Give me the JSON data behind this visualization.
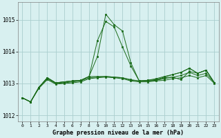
{
  "title": "Graphe pression niveau de la mer (hPa)",
  "background_color": "#d8f0f0",
  "grid_color": "#aacece",
  "line_color": "#1a6b1a",
  "marker_color": "#1a6b1a",
  "xlim": [
    -0.5,
    23.5
  ],
  "ylim": [
    1011.8,
    1015.55
  ],
  "yticks": [
    1012,
    1013,
    1014,
    1015
  ],
  "xticks": [
    0,
    1,
    2,
    3,
    4,
    5,
    6,
    7,
    8,
    9,
    10,
    11,
    12,
    13,
    14,
    15,
    16,
    17,
    18,
    19,
    20,
    21,
    22,
    23
  ],
  "series": [
    {
      "x": [
        0,
        1,
        2,
        3,
        4,
        5,
        6,
        7,
        8,
        9,
        10,
        11,
        12,
        13,
        14,
        15,
        16,
        17,
        18,
        19,
        20,
        21,
        22,
        23
      ],
      "y": [
        1012.55,
        1012.42,
        1012.88,
        1013.18,
        1013.02,
        1013.05,
        1013.08,
        1013.1,
        1013.22,
        1013.85,
        1015.18,
        1014.85,
        1014.65,
        1013.65,
        1013.08,
        1013.08,
        1013.1,
        1013.18,
        1013.2,
        1013.12,
        1013.38,
        1013.32,
        1013.42,
        1013.02
      ]
    },
    {
      "x": [
        0,
        1,
        2,
        3,
        4,
        5,
        6,
        7,
        8,
        9,
        10,
        11,
        12,
        13,
        14,
        15,
        16,
        17,
        18,
        19,
        20,
        21,
        22,
        23
      ],
      "y": [
        1012.55,
        1012.42,
        1012.88,
        1013.18,
        1013.02,
        1013.05,
        1013.08,
        1013.1,
        1013.22,
        1014.35,
        1014.95,
        1014.78,
        1014.15,
        1013.55,
        1013.08,
        1013.1,
        1013.12,
        1013.2,
        1013.28,
        1013.35,
        1013.48,
        1013.32,
        1013.42,
        1013.02
      ]
    },
    {
      "x": [
        0,
        1,
        2,
        3,
        4,
        5,
        6,
        7,
        8,
        9,
        10,
        11,
        12,
        13,
        14,
        15,
        16,
        17,
        18,
        19,
        20,
        21,
        22,
        23
      ],
      "y": [
        1012.55,
        1012.42,
        1012.88,
        1013.18,
        1013.02,
        1013.05,
        1013.08,
        1013.1,
        1013.22,
        1013.22,
        1013.22,
        1013.2,
        1013.18,
        1013.12,
        1013.08,
        1013.1,
        1013.15,
        1013.22,
        1013.28,
        1013.35,
        1013.48,
        1013.32,
        1013.42,
        1013.02
      ]
    },
    {
      "x": [
        0,
        1,
        2,
        3,
        4,
        5,
        6,
        7,
        8,
        9,
        10,
        11,
        12,
        13,
        14,
        15,
        16,
        17,
        18,
        19,
        20,
        21,
        22,
        23
      ],
      "y": [
        1012.55,
        1012.42,
        1012.88,
        1013.15,
        1013.0,
        1013.02,
        1013.05,
        1013.08,
        1013.18,
        1013.2,
        1013.22,
        1013.2,
        1013.18,
        1013.1,
        1013.08,
        1013.08,
        1013.1,
        1013.15,
        1013.2,
        1013.25,
        1013.35,
        1013.25,
        1013.32,
        1013.02
      ]
    },
    {
      "x": [
        0,
        1,
        2,
        3,
        4,
        5,
        6,
        7,
        8,
        9,
        10,
        11,
        12,
        13,
        14,
        15,
        16,
        17,
        18,
        19,
        20,
        21,
        22,
        23
      ],
      "y": [
        1012.55,
        1012.42,
        1012.85,
        1013.12,
        1012.98,
        1013.0,
        1013.02,
        1013.05,
        1013.15,
        1013.18,
        1013.2,
        1013.18,
        1013.15,
        1013.08,
        1013.05,
        1013.05,
        1013.08,
        1013.1,
        1013.15,
        1013.18,
        1013.25,
        1013.18,
        1013.25,
        1013.0
      ]
    }
  ]
}
